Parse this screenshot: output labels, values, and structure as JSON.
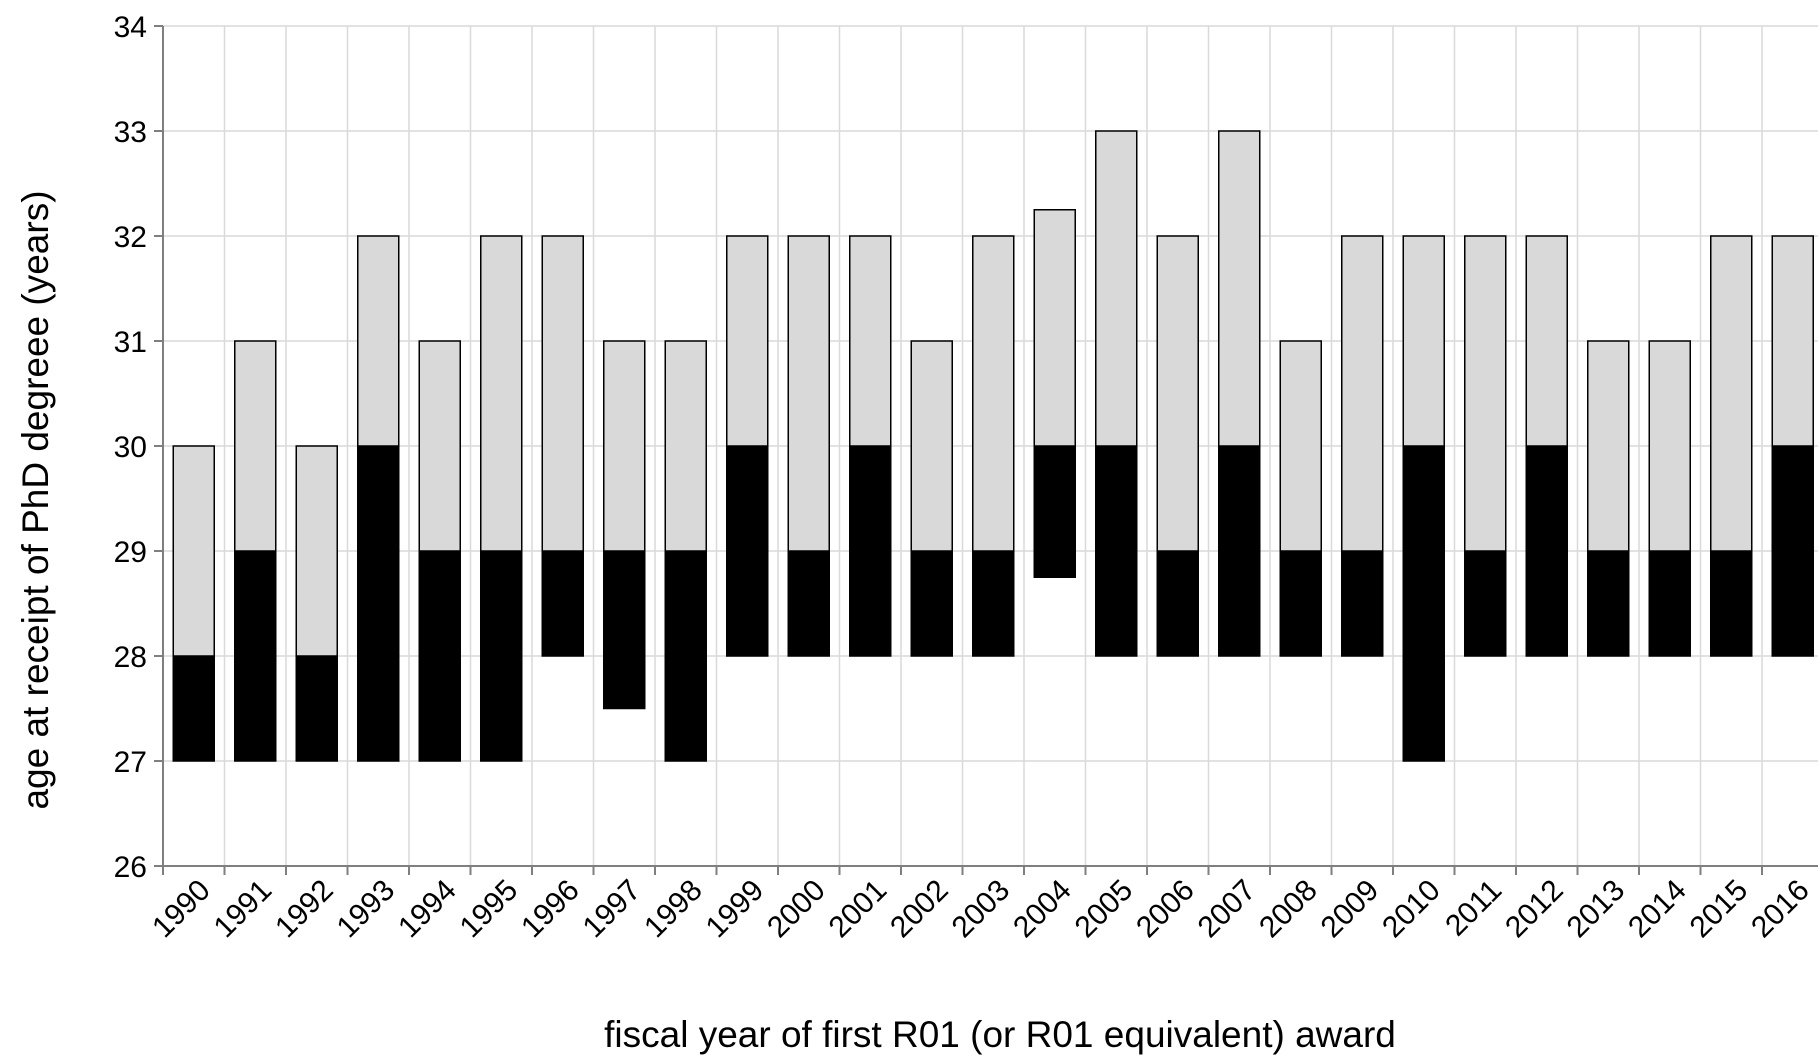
{
  "chart_data": {
    "type": "bar",
    "xlabel": "fiscal year of first R01 (or R01 equivalent) award",
    "ylabel": "age at receipt of PhD degreee (years)",
    "ylim": [
      26,
      34
    ],
    "yticks": [
      26,
      27,
      28,
      29,
      30,
      31,
      32,
      33,
      34
    ],
    "grid": true,
    "legend": "none",
    "colors": {
      "dark": "#000000",
      "light": "#d9d9d9",
      "grid": "#d9d9d9",
      "axis": "#7f7f7f"
    },
    "categories": [
      "1990",
      "1991",
      "1992",
      "1993",
      "1994",
      "1995",
      "1996",
      "1997",
      "1998",
      "1999",
      "2000",
      "2001",
      "2002",
      "2003",
      "2004",
      "2005",
      "2006",
      "2007",
      "2008",
      "2009",
      "2010",
      "2011",
      "2012",
      "2013",
      "2014",
      "2015",
      "2016"
    ],
    "series": [
      {
        "color": "#000000",
        "low": [
          27,
          27,
          27,
          27,
          27,
          27,
          28,
          27.5,
          27,
          28,
          28,
          28,
          28,
          28,
          28.75,
          28,
          28,
          28,
          28,
          28,
          27,
          28,
          28,
          28,
          28,
          28,
          28
        ],
        "high": [
          28,
          29,
          28,
          30,
          29,
          29,
          29,
          29,
          29,
          30,
          29,
          30,
          29,
          29,
          30,
          30,
          29,
          30,
          29,
          29,
          30,
          29,
          30,
          29,
          29,
          29,
          30
        ]
      },
      {
        "color": "#d9d9d9",
        "low": [
          28,
          29,
          28,
          30,
          29,
          29,
          29,
          29,
          29,
          30,
          29,
          30,
          29,
          29,
          30,
          30,
          29,
          30,
          29,
          29,
          30,
          29,
          30,
          29,
          29,
          29,
          30
        ],
        "high": [
          30,
          31,
          30,
          32,
          31,
          32,
          32,
          31,
          31,
          32,
          32,
          32,
          31,
          32,
          32.25,
          33,
          32,
          33,
          31,
          32,
          32,
          32,
          32,
          31,
          31,
          32,
          32
        ]
      }
    ]
  }
}
